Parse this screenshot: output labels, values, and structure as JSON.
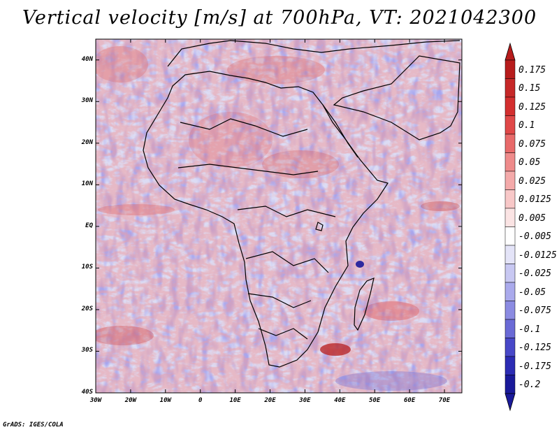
{
  "title": "Vertical velocity [m/s] at 700hPa, VT: 2021042300",
  "credit": "GrADS: IGES/COLA",
  "y_ticks": [
    "40N",
    "30N",
    "20N",
    "10N",
    "EQ",
    "10S",
    "20S",
    "30S",
    "40S"
  ],
  "x_ticks": [
    "30W",
    "20W",
    "10W",
    "0",
    "10E",
    "20E",
    "30E",
    "40E",
    "50E",
    "60E",
    "70E"
  ],
  "colorbar": {
    "labels": [
      "0.175",
      "0.15",
      "0.125",
      "0.1",
      "0.075",
      "0.05",
      "0.025",
      "0.0125",
      "0.005",
      "-0.005",
      "-0.0125",
      "-0.025",
      "-0.05",
      "-0.075",
      "-0.1",
      "-0.125",
      "-0.175",
      "-0.2"
    ],
    "colors": [
      "#b71c1c",
      "#c62828",
      "#d32f2f",
      "#e04848",
      "#e86a6a",
      "#ef8b8b",
      "#f4aaaa",
      "#f8c8c8",
      "#fbe4e4",
      "#ffffff",
      "#e4e4f8",
      "#c8c8f2",
      "#aaaaec",
      "#8b8be2",
      "#6a6ad6",
      "#4848c8",
      "#2c2cb4",
      "#1a1a9a"
    ]
  },
  "chart_data": {
    "type": "heatmap",
    "title": "Vertical velocity [m/s] at 700hPa, VT: 2021042300",
    "variable": "Vertical velocity",
    "units": "m/s",
    "level": "700hPa",
    "valid_time": "2021042300",
    "xlim": [
      -30,
      75
    ],
    "ylim": [
      -40,
      45
    ],
    "x_tick_values": [
      -30,
      -20,
      -10,
      0,
      10,
      20,
      30,
      40,
      50,
      60,
      70
    ],
    "y_tick_values": [
      40,
      30,
      20,
      10,
      0,
      -10,
      -20,
      -30,
      -40
    ],
    "color_levels": [
      0.175,
      0.15,
      0.125,
      0.1,
      0.075,
      0.05,
      0.025,
      0.0125,
      0.005,
      -0.005,
      -0.0125,
      -0.025,
      -0.05,
      -0.075,
      -0.1,
      -0.125,
      -0.175,
      -0.2
    ]
  }
}
